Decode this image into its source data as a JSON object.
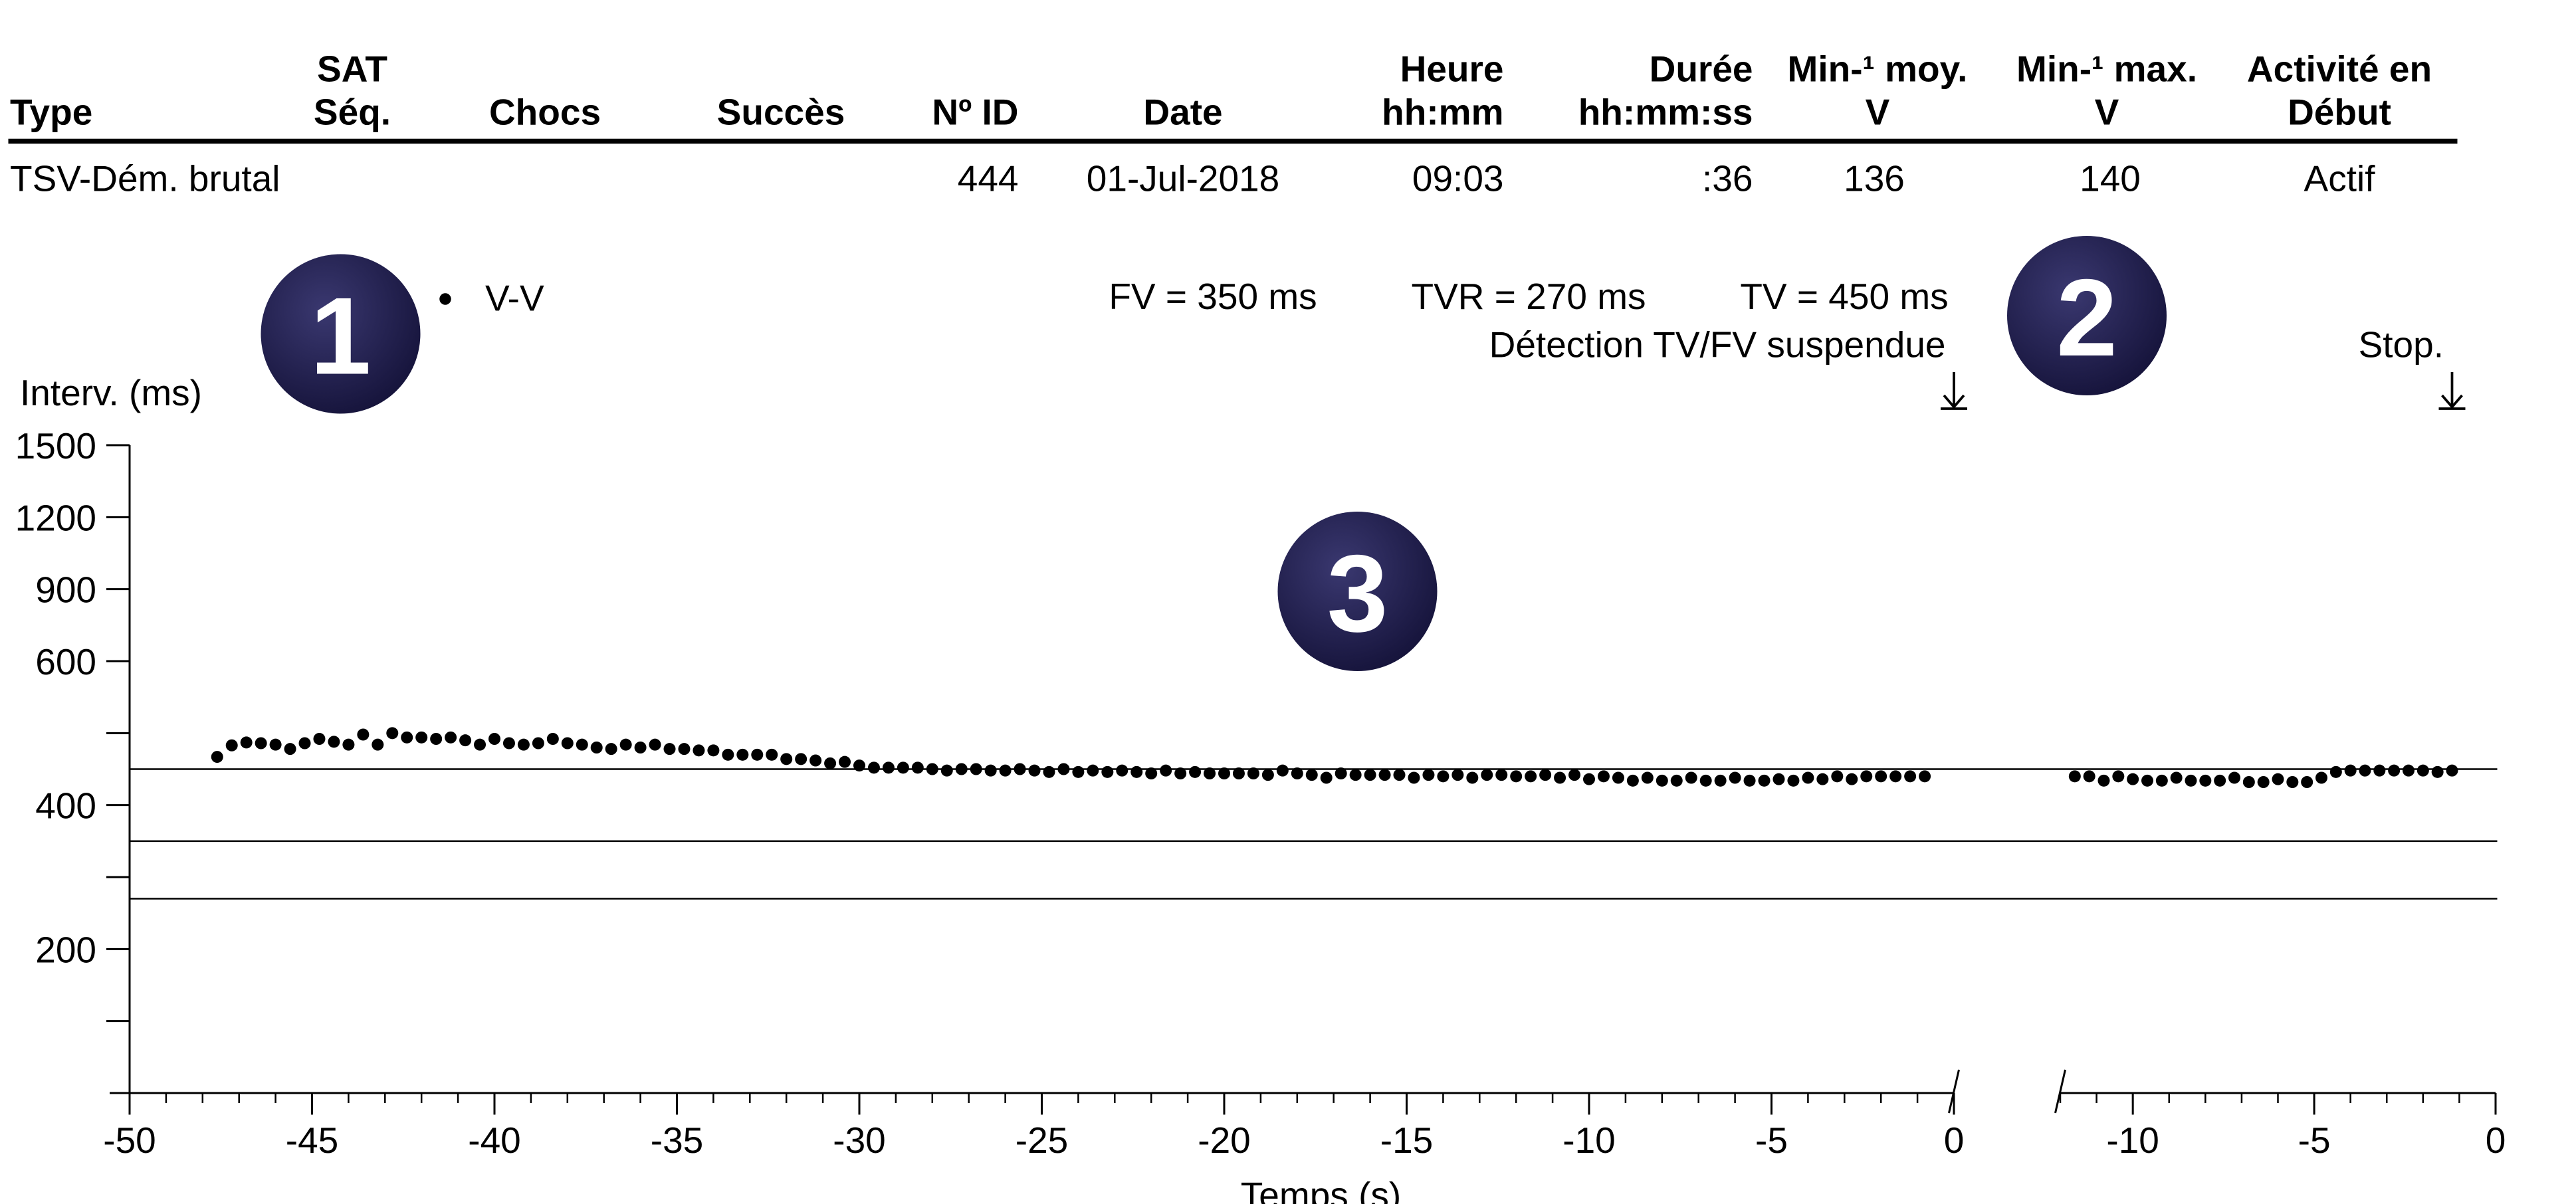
{
  "table": {
    "headers": [
      [
        null,
        "Type"
      ],
      [
        "SAT",
        "Séq."
      ],
      [
        null,
        "Chocs"
      ],
      [
        null,
        "Succès"
      ],
      [
        null,
        "Nº ID"
      ],
      [
        null,
        "Date"
      ],
      [
        "Heure",
        "hh:mm"
      ],
      [
        "Durée",
        "hh:mm:ss"
      ],
      [
        "Min-¹ moy.",
        "V"
      ],
      [
        "Min-¹ max.",
        "V"
      ],
      [
        "Activité en",
        "Début"
      ]
    ],
    "rows": [
      [
        "TSV-Dém. brutal",
        null,
        null,
        null,
        444,
        "01-Jul-2018",
        "09:03",
        ":36",
        136,
        140,
        "Actif"
      ]
    ]
  },
  "badges": [
    "1",
    "2",
    "3"
  ],
  "chart_data": {
    "type": "scatter",
    "legend": "V-V",
    "color": "#000000",
    "ylabel": "Interv. (ms)",
    "xlabel": "Temps (s)",
    "ylim": [
      0,
      1500
    ],
    "yticks": [
      200,
      400,
      600,
      900,
      1200,
      1500
    ],
    "yminorticks": [
      100,
      300,
      500
    ],
    "thresholds": [
      {
        "label": "FV = 350 ms",
        "value": 350
      },
      {
        "label": "TVR = 270 ms",
        "value": 270
      },
      {
        "label": "TV = 450 ms",
        "value": 450
      }
    ],
    "annotations": [
      {
        "text": "Détection TV/FV suspendue",
        "panel": 0,
        "x": 0
      },
      {
        "text": "Stop.",
        "panel": 1,
        "x": -1.2
      }
    ],
    "panels": [
      {
        "xlim": [
          -50,
          0
        ],
        "xticks": [
          -50,
          -45,
          -40,
          -35,
          -30,
          -25,
          -20,
          -15,
          -10,
          -5,
          0
        ],
        "xminor": 1,
        "x": [
          -47.6,
          -47.2,
          -46.8,
          -46.4,
          -46.0,
          -45.6,
          -45.2,
          -44.8,
          -44.4,
          -44.0,
          -43.6,
          -43.2,
          -42.8,
          -42.4,
          -42.0,
          -41.6,
          -41.2,
          -40.8,
          -40.4,
          -40.0,
          -39.6,
          -39.2,
          -38.8,
          -38.4,
          -38.0,
          -37.6,
          -37.2,
          -36.8,
          -36.4,
          -36.0,
          -35.6,
          -35.2,
          -34.8,
          -34.4,
          -34.0,
          -33.6,
          -33.2,
          -32.8,
          -32.4,
          -32.0,
          -31.6,
          -31.2,
          -30.8,
          -30.4,
          -30.0,
          -29.6,
          -29.2,
          -28.8,
          -28.4,
          -28.0,
          -27.6,
          -27.2,
          -26.8,
          -26.4,
          -26.0,
          -25.6,
          -25.2,
          -24.8,
          -24.4,
          -24.0,
          -23.6,
          -23.2,
          -22.8,
          -22.4,
          -22.0,
          -21.6,
          -21.2,
          -20.8,
          -20.4,
          -20.0,
          -19.6,
          -19.2,
          -18.8,
          -18.4,
          -18.0,
          -17.6,
          -17.2,
          -16.8,
          -16.4,
          -16.0,
          -15.6,
          -15.2,
          -14.8,
          -14.4,
          -14.0,
          -13.6,
          -13.2,
          -12.8,
          -12.4,
          -12.0,
          -11.6,
          -11.2,
          -10.8,
          -10.4,
          -10.0,
          -9.6,
          -9.2,
          -8.8,
          -8.4,
          -8.0,
          -7.6,
          -7.2,
          -6.8,
          -6.4,
          -6.0,
          -5.6,
          -5.2,
          -4.8,
          -4.4,
          -4.0,
          -3.6,
          -3.2,
          -2.8,
          -2.4,
          -2.0,
          -1.6,
          -1.2,
          -0.8
        ],
        "values": [
          467,
          483,
          487,
          486,
          484,
          478,
          486,
          492,
          488,
          484,
          498,
          484,
          500,
          494,
          494,
          492,
          494,
          490,
          484,
          492,
          486,
          484,
          486,
          492,
          486,
          484,
          480,
          478,
          484,
          480,
          484,
          478,
          478,
          476,
          476,
          470,
          470,
          470,
          470,
          464,
          464,
          462,
          458,
          460,
          455,
          452,
          452,
          452,
          452,
          450,
          448,
          450,
          450,
          448,
          448,
          450,
          448,
          446,
          450,
          446,
          448,
          446,
          448,
          446,
          444,
          448,
          444,
          446,
          444,
          444,
          444,
          444,
          442,
          448,
          444,
          442,
          438,
          444,
          442,
          442,
          442,
          442,
          438,
          442,
          440,
          442,
          438,
          442,
          442,
          440,
          440,
          442,
          438,
          442,
          436,
          440,
          438,
          434,
          438,
          434,
          434,
          438,
          434,
          434,
          438,
          434,
          434,
          436,
          434,
          438,
          436,
          440,
          436,
          440,
          440,
          440,
          440,
          440
        ]
      },
      {
        "xlim": [
          -12,
          0
        ],
        "xticks": [
          -10,
          -5,
          0
        ],
        "xminor": 1,
        "x": [
          -11.6,
          -11.2,
          -10.8,
          -10.4,
          -10.0,
          -9.6,
          -9.2,
          -8.8,
          -8.4,
          -8.0,
          -7.6,
          -7.2,
          -6.8,
          -6.4,
          -6.0,
          -5.6,
          -5.2,
          -4.8,
          -4.4,
          -4.0,
          -3.6,
          -3.2,
          -2.8,
          -2.4,
          -2.0,
          -1.6,
          -1.2
        ],
        "values": [
          440,
          440,
          434,
          440,
          436,
          434,
          434,
          438,
          434,
          434,
          434,
          438,
          432,
          432,
          436,
          432,
          432,
          438,
          446,
          448,
          448,
          448,
          448,
          448,
          448,
          446,
          448
        ]
      }
    ]
  }
}
